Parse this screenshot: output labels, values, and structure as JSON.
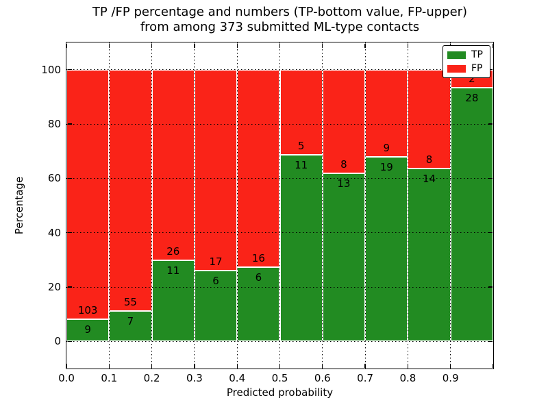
{
  "chart_data": {
    "type": "bar",
    "stacked": true,
    "title_lines": [
      "TP /FP percentage and numbers (TP-bottom value, FP-upper)",
      "from among 373 submitted ML-type contacts"
    ],
    "title": "TP /FP percentage and numbers (TP-bottom value, FP-upper)\nfrom among 373 submitted ML-type contacts",
    "xlabel": "Predicted probability",
    "ylabel": "Percentage",
    "total_contacts": 373,
    "bin_edges": [
      0.0,
      0.1,
      0.2,
      0.3,
      0.4,
      0.5,
      0.6,
      0.7,
      0.8,
      0.9,
      1.0
    ],
    "x_tick_labels": [
      "0.0",
      "0.1",
      "0.2",
      "0.3",
      "0.4",
      "0.5",
      "0.6",
      "0.7",
      "0.8",
      "0.9"
    ],
    "y_ticks": [
      0,
      20,
      40,
      60,
      80,
      100
    ],
    "y_tick_labels": [
      "0",
      "20",
      "40",
      "60",
      "80",
      "100"
    ],
    "xlim": [
      0.0,
      1.0
    ],
    "ylim": [
      -10,
      110
    ],
    "grid": true,
    "grid_style": "dotted",
    "bar_unit": "percent of bin total (TP and FP stack to 100%)",
    "series": [
      {
        "name": "TP",
        "color": "#228b22",
        "counts": [
          9,
          7,
          11,
          6,
          6,
          11,
          13,
          19,
          14,
          28
        ]
      },
      {
        "name": "FP",
        "color": "#fa2318",
        "counts": [
          103,
          55,
          26,
          17,
          16,
          5,
          8,
          9,
          8,
          2
        ]
      }
    ],
    "tp_percent_per_bin": [
      8.0,
      11.3,
      29.7,
      26.1,
      27.3,
      68.8,
      61.9,
      67.9,
      63.6,
      93.3
    ],
    "legend": {
      "position": "upper right",
      "entries": [
        "TP",
        "FP"
      ]
    }
  },
  "colors": {
    "tp_green": "#228b22",
    "fp_red": "#fa2318",
    "grid": "#000000",
    "background": "#ffffff",
    "bar_edge": "#ffffff"
  }
}
